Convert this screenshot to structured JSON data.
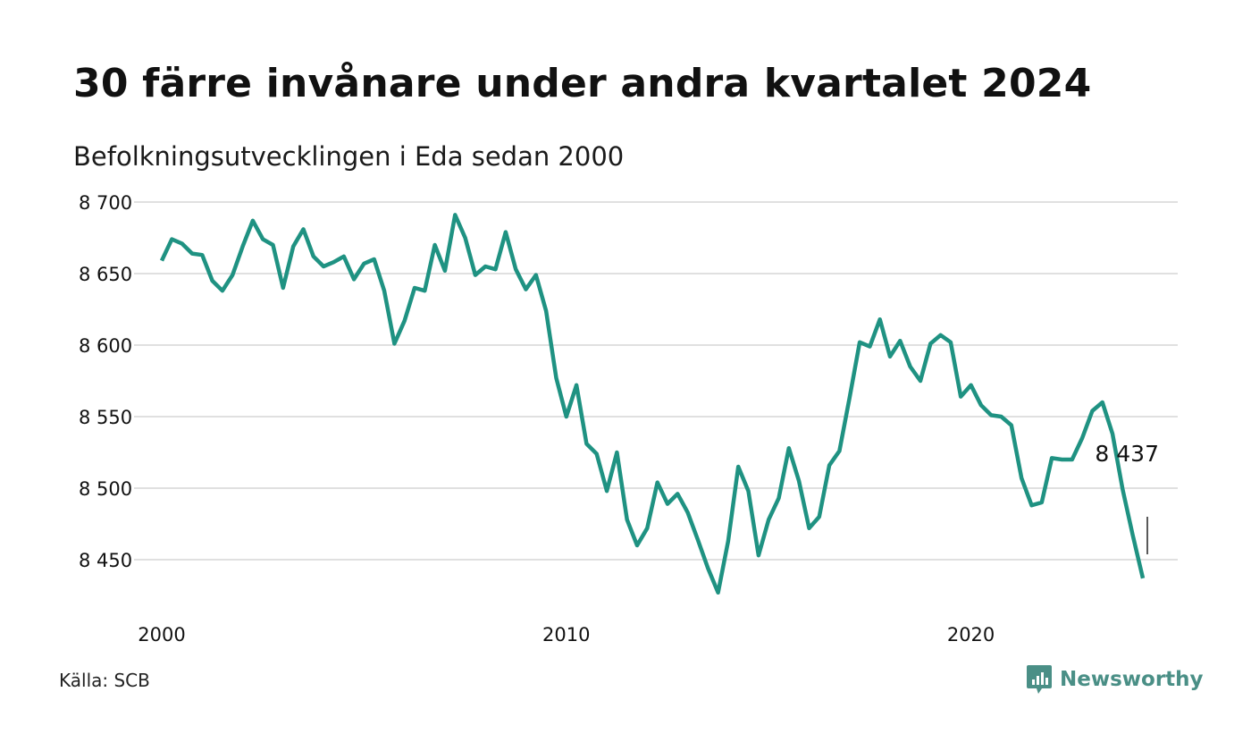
{
  "title": "30 färre invånare under andra kvartalet 2024",
  "subtitle": "Befolkningsutvecklingen i Eda sedan 2000",
  "source": "Källa: SCB",
  "brand": {
    "name": "Newsworthy",
    "icon": "chart-bubble-icon",
    "color": "#4a8f86"
  },
  "colors": {
    "line": "#1f9282",
    "grid": "#e0e0e0",
    "text": "#111111"
  },
  "chart_data": {
    "type": "line",
    "title": "30 färre invånare under andra kvartalet 2024",
    "subtitle": "Befolkningsutvecklingen i Eda sedan 2000",
    "xlabel": "",
    "ylabel": "",
    "xlim": [
      2000.0,
      2024.75
    ],
    "ylim": [
      8420,
      8700
    ],
    "yticks": [
      8450,
      8500,
      8550,
      8600,
      8650,
      8700
    ],
    "ytick_labels": [
      "8 450",
      "8 500",
      "8 550",
      "8 600",
      "8 650",
      "8 700"
    ],
    "xticks": [
      2000,
      2010,
      2020
    ],
    "xtick_labels": [
      "2000",
      "2010",
      "2020"
    ],
    "grid": true,
    "last_label": "8 437",
    "series": [
      {
        "frequency": "quarterly",
        "first_period": "2000 Q1",
        "last_period": "2024 Q2",
        "values": [
          8659,
          8674,
          8671,
          8664,
          8663,
          8645,
          8638,
          8649,
          8669,
          8687,
          8674,
          8670,
          8640,
          8669,
          8681,
          8662,
          8655,
          8658,
          8662,
          8646,
          8657,
          8660,
          8638,
          8601,
          8617,
          8640,
          8638,
          8670,
          8652,
          8691,
          8675,
          8649,
          8655,
          8653,
          8679,
          8653,
          8639,
          8649,
          8624,
          8577,
          8550,
          8572,
          8531,
          8524,
          8498,
          8525,
          8478,
          8460,
          8472,
          8504,
          8489,
          8496,
          8483,
          8464,
          8444,
          8427,
          8463,
          8515,
          8498,
          8453,
          8478,
          8493,
          8528,
          8505,
          8472,
          8480,
          8516,
          8526,
          8563,
          8602,
          8599,
          8618,
          8592,
          8603,
          8585,
          8575,
          8601,
          8607,
          8602,
          8564,
          8572,
          8558,
          8551,
          8550,
          8544,
          8507,
          8488,
          8490,
          8521,
          8520,
          8520,
          8535,
          8554,
          8560,
          8538,
          8499,
          8467,
          8437
        ]
      }
    ]
  }
}
